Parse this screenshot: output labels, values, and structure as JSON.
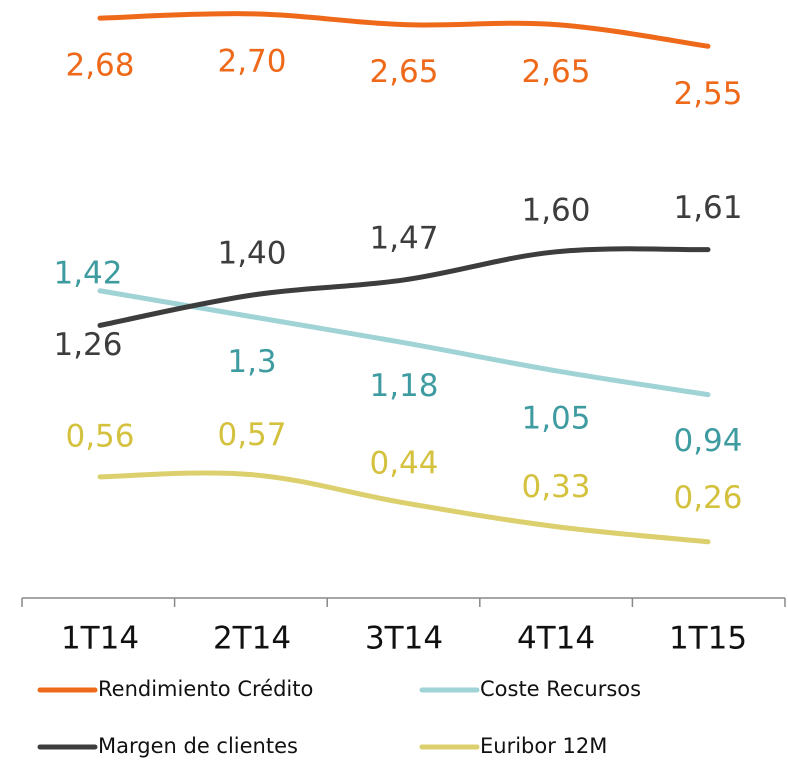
{
  "chart_data": {
    "type": "line",
    "categories": [
      "1T14",
      "2T14",
      "3T14",
      "4T14",
      "1T15"
    ],
    "ylim": [
      0,
      2.75
    ],
    "series": [
      {
        "name": "Rendimiento Crédito",
        "color": "#ee6a1a",
        "label_color": "#ee6a1a",
        "values": [
          2.68,
          2.7,
          2.65,
          2.65,
          2.55
        ],
        "value_labels": [
          "2,68",
          "2,70",
          "2,65",
          "2,65",
          "2,55"
        ]
      },
      {
        "name": "Coste Recursos",
        "color": "#9fd3d6",
        "label_color": "#3e9ba0",
        "values": [
          1.42,
          1.3,
          1.18,
          1.05,
          0.94
        ],
        "value_labels": [
          "1,42",
          "1,3",
          "1,18",
          "1,05",
          "0,94"
        ]
      },
      {
        "name": "Margen de clientes",
        "color": "#3d3d3d",
        "label_color": "#3d3d3d",
        "values": [
          1.26,
          1.4,
          1.47,
          1.6,
          1.61
        ],
        "value_labels": [
          "1,26",
          "1,40",
          "1,47",
          "1,60",
          "1,61"
        ]
      },
      {
        "name": "Euribor 12M",
        "color": "#dccf6e",
        "label_color": "#d4c23f",
        "values": [
          0.56,
          0.57,
          0.44,
          0.33,
          0.26
        ],
        "value_labels": [
          "0,56",
          "0,57",
          "0,44",
          "0,33",
          "0,26"
        ]
      }
    ]
  }
}
